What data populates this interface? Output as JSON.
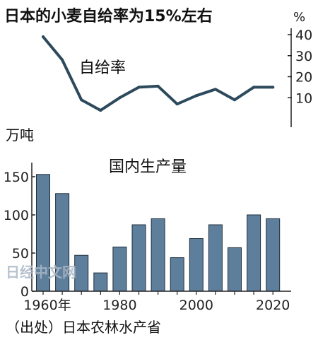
{
  "title": "日本的小麦自给率为15%左右",
  "source": "（出处）日本农林水产省",
  "watermark": "日经中文网",
  "colors": {
    "line": "#2d4a5c",
    "bar_fill": "#5e7f9c",
    "bar_stroke": "#1f2f3c",
    "axis": "#222222",
    "watermark": "#aab8c6"
  },
  "chart_data": [
    {
      "type": "line",
      "label": "自给率",
      "yunit": "%",
      "x": [
        1960,
        1965,
        1970,
        1975,
        1980,
        1985,
        1990,
        1995,
        2000,
        2005,
        2010,
        2015,
        2020
      ],
      "values": [
        39,
        28,
        9,
        4,
        10,
        15,
        15.5,
        7,
        11,
        14,
        9,
        15,
        15
      ],
      "ylim": [
        0,
        40
      ],
      "yticks": [
        10,
        20,
        30,
        40
      ],
      "ytick_labels": [
        "10",
        "20",
        "30",
        "40"
      ]
    },
    {
      "type": "bar",
      "label": "国内生产量",
      "yunit": "万吨",
      "categories": [
        1960,
        1965,
        1970,
        1975,
        1980,
        1985,
        1990,
        1995,
        2000,
        2005,
        2010,
        2015,
        2020
      ],
      "values": [
        153,
        128,
        47,
        24,
        58,
        87,
        95,
        44,
        69,
        87,
        57,
        100,
        95
      ],
      "ylim": [
        0,
        170
      ],
      "yticks": [
        0,
        50,
        100,
        150
      ],
      "ytick_labels": [
        "0",
        "50",
        "100",
        "150"
      ],
      "xtick_labels": [
        {
          "x": 1960,
          "label": "1960年"
        },
        {
          "x": 1980,
          "label": "1980"
        },
        {
          "x": 2000,
          "label": "2000"
        },
        {
          "x": 2020,
          "label": "2020"
        }
      ],
      "grid": false
    }
  ]
}
